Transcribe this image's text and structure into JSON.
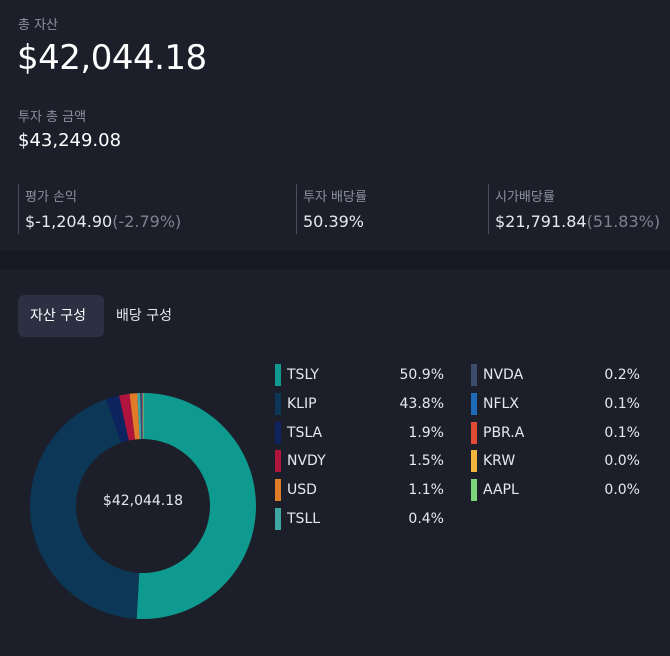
{
  "summary": {
    "total_assets_label": "총 자산",
    "total_assets_value": "$42,044.18",
    "invest_total_label": "투자 총 금액",
    "invest_total_value": "$43,249.08",
    "stats": [
      {
        "label": "평가 손익",
        "value": "$-1,204.90",
        "pct": "(-2.79%)"
      },
      {
        "label": "투자 배당률",
        "value": "50.39%",
        "pct": ""
      },
      {
        "label": "시가배당률",
        "value": "$21,791.84",
        "pct": "(51.83%)"
      }
    ]
  },
  "tabs": [
    {
      "label": "자산 구성",
      "active": true
    },
    {
      "label": "배당 구성",
      "active": false
    }
  ],
  "donut_center": "$42,044.18",
  "legend": [
    {
      "name": "TSLY",
      "pct": "50.9%",
      "value": 50.9,
      "color": "#0f9a90"
    },
    {
      "name": "KLIP",
      "pct": "43.8%",
      "value": 43.8,
      "color": "#0c3757"
    },
    {
      "name": "TSLA",
      "pct": "1.9%",
      "value": 1.9,
      "color": "#0d2460"
    },
    {
      "name": "NVDY",
      "pct": "1.5%",
      "value": 1.5,
      "color": "#b0143c"
    },
    {
      "name": "USD",
      "pct": "1.1%",
      "value": 1.1,
      "color": "#e07b27"
    },
    {
      "name": "TSLL",
      "pct": "0.4%",
      "value": 0.4,
      "color": "#3fa7a3"
    },
    {
      "name": "NVDA",
      "pct": "0.2%",
      "value": 0.2,
      "color": "#3b4d6a"
    },
    {
      "name": "NFLX",
      "pct": "0.1%",
      "value": 0.1,
      "color": "#1e6bb8"
    },
    {
      "name": "PBR.A",
      "pct": "0.1%",
      "value": 0.1,
      "color": "#e04b36"
    },
    {
      "name": "KRW",
      "pct": "0.0%",
      "value": 0.0,
      "color": "#f2b43a"
    },
    {
      "name": "AAPL",
      "pct": "0.0%",
      "value": 0.0,
      "color": "#7bd87a"
    }
  ]
}
